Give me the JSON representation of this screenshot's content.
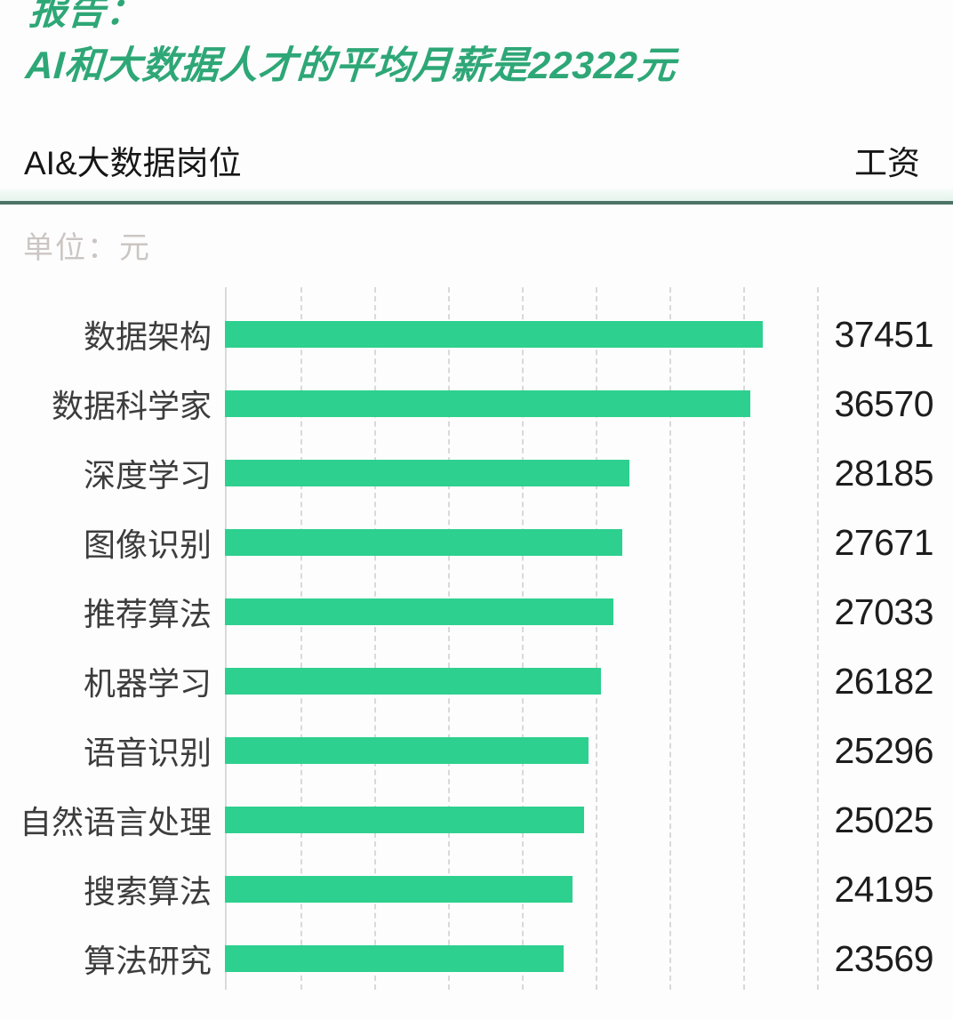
{
  "header": {
    "title_line1": "报告：",
    "title_line2": "AI和大数据人才的平均月薪是22322元"
  },
  "table_header": {
    "left_label": "AI&大数据岗位",
    "right_label": "工资"
  },
  "unit_label": "单位：元",
  "colors": {
    "title_green": "#2ea777",
    "bar_green": "#2dd08e",
    "divider_green": "#4b7466"
  },
  "chart_data": {
    "type": "bar",
    "orientation": "horizontal",
    "title": "AI和大数据人才的平均月薪是22322元",
    "average_salary_in_title": 22322,
    "unit": "元",
    "categories": [
      "数据架构",
      "数据科学家",
      "深度学习",
      "图像识别",
      "推荐算法",
      "机器学习",
      "语音识别",
      "自然语言处理",
      "搜索算法",
      "算法研究"
    ],
    "values": [
      37451,
      36570,
      28185,
      27671,
      27033,
      26182,
      25296,
      25025,
      24195,
      23569
    ],
    "xlim": [
      0,
      40000
    ],
    "grid": true,
    "gridline_count": 8,
    "legend": "none",
    "value_labels_shown": true
  }
}
